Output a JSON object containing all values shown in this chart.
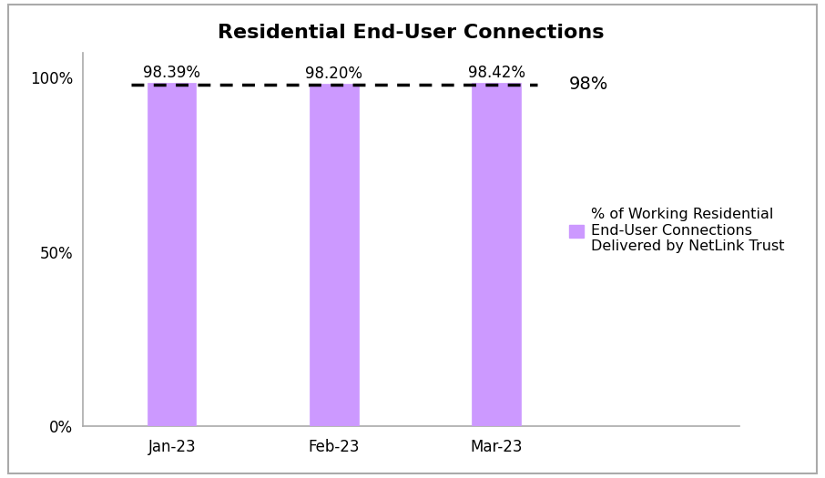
{
  "title": "Residential End-User Connections",
  "categories": [
    "Jan-23",
    "Feb-23",
    "Mar-23"
  ],
  "values": [
    98.39,
    98.2,
    98.42
  ],
  "bar_labels": [
    "98.39%",
    "98.20%",
    "98.42%"
  ],
  "bar_color": "#cc99ff",
  "bar_edgecolor": "#cc99ff",
  "target_line_y": 98,
  "target_line_label": "98%",
  "ylim": [
    0,
    107
  ],
  "yticks": [
    0,
    50,
    100
  ],
  "ytick_labels": [
    "0%",
    "50%",
    "100%"
  ],
  "legend_label": "% of Working Residential\nEnd-User Connections\nDelivered by NetLink Trust",
  "legend_color": "#cc99ff",
  "title_fontsize": 16,
  "label_fontsize": 12,
  "tick_fontsize": 12,
  "bar_width": 0.3,
  "background_color": "#ffffff",
  "border_color": "#aaaaaa"
}
